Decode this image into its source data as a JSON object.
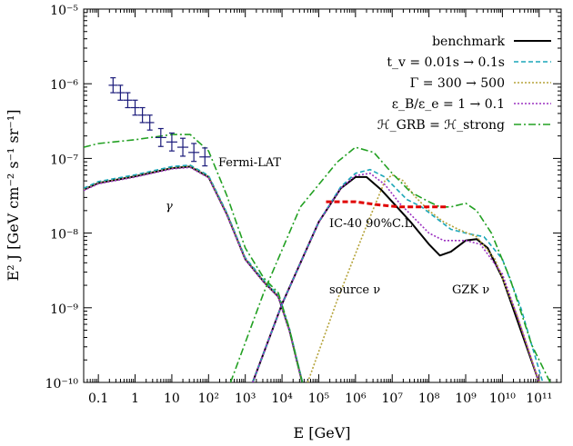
{
  "chart_data": {
    "type": "line",
    "title": "",
    "xlabel": "E [GeV]",
    "ylabel": "E² J [GeV cm⁻² s⁻¹ sr⁻¹]",
    "xscale": "log",
    "yscale": "log",
    "xlim_log10": [
      -1.4,
      11.6
    ],
    "ylim_log10": [
      -10,
      -5
    ],
    "x_tick_labels": [
      "0.1",
      "1",
      "10",
      "10²",
      "10³",
      "10⁴",
      "10⁵",
      "10⁶",
      "10⁷",
      "10⁸",
      "10⁹",
      "10¹⁰",
      "10¹¹"
    ],
    "x_tick_exponents": [
      -1,
      0,
      1,
      2,
      3,
      4,
      5,
      6,
      7,
      8,
      9,
      10,
      11
    ],
    "y_tick_labels": [
      "10⁻¹⁰",
      "10⁻⁹",
      "10⁻⁸",
      "10⁻⁷",
      "10⁻⁶",
      "10⁻⁵"
    ],
    "y_tick_exponents": [
      -10,
      -9,
      -8,
      -7,
      -6,
      -5
    ],
    "legend": [
      {
        "label": "benchmark",
        "color": "#000000",
        "style": "solid"
      },
      {
        "label": "t_v = 0.01s → 0.1s",
        "color": "#1aa6b8",
        "style": "dashed"
      },
      {
        "label": "Γ = 300 → 500",
        "color": "#b5a33a",
        "style": "dotted"
      },
      {
        "label": "ε_B/ε_e = 1 → 0.1",
        "color": "#9b30c0",
        "style": "dotted"
      },
      {
        "label": "ℋ_GRB = ℋ_strong",
        "color": "#22a022",
        "style": "dashdot"
      }
    ],
    "legend_position": "top-right",
    "annotations": [
      "Fermi-LAT",
      "γ",
      "IC-40 90%C.L.",
      "source ν",
      "GZK ν"
    ],
    "series": [
      {
        "name": "benchmark γ",
        "color": "#000000",
        "style": "solid",
        "points": [
          [
            -1.4,
            -7.42
          ],
          [
            -1,
            -7.33
          ],
          [
            0,
            -7.24
          ],
          [
            1,
            -7.13
          ],
          [
            1.5,
            -7.11
          ],
          [
            2,
            -7.25
          ],
          [
            2.5,
            -7.75
          ],
          [
            3,
            -8.35
          ],
          [
            3.5,
            -8.65
          ],
          [
            3.9,
            -8.85
          ],
          [
            4.2,
            -9.3
          ],
          [
            4.4,
            -9.7
          ],
          [
            4.55,
            -10
          ]
        ]
      },
      {
        "name": "t_v γ",
        "color": "#1aa6b8",
        "style": "dashed",
        "points": [
          [
            -1.4,
            -7.4
          ],
          [
            -1,
            -7.31
          ],
          [
            0,
            -7.22
          ],
          [
            1,
            -7.11
          ],
          [
            1.5,
            -7.09
          ],
          [
            2,
            -7.23
          ],
          [
            2.5,
            -7.73
          ],
          [
            3,
            -8.33
          ],
          [
            3.5,
            -8.63
          ],
          [
            3.9,
            -8.83
          ],
          [
            4.2,
            -9.28
          ],
          [
            4.4,
            -9.68
          ],
          [
            4.56,
            -10
          ]
        ]
      },
      {
        "name": "Γ γ",
        "color": "#b5a33a",
        "style": "dotted",
        "points": [
          [
            -1.4,
            -7.42
          ],
          [
            -1,
            -7.33
          ],
          [
            0,
            -7.24
          ],
          [
            1,
            -7.13
          ],
          [
            1.5,
            -7.11
          ],
          [
            2,
            -7.25
          ],
          [
            2.5,
            -7.75
          ],
          [
            3,
            -8.35
          ],
          [
            3.5,
            -8.65
          ],
          [
            3.9,
            -8.85
          ],
          [
            4.2,
            -9.3
          ],
          [
            4.4,
            -9.7
          ],
          [
            4.55,
            -10
          ]
        ]
      },
      {
        "name": "ε γ",
        "color": "#9b30c0",
        "style": "dotted",
        "points": [
          [
            -1.4,
            -7.43
          ],
          [
            -1,
            -7.34
          ],
          [
            0,
            -7.25
          ],
          [
            1,
            -7.14
          ],
          [
            1.5,
            -7.12
          ],
          [
            2,
            -7.26
          ],
          [
            2.5,
            -7.76
          ],
          [
            3,
            -8.36
          ],
          [
            3.5,
            -8.66
          ],
          [
            3.9,
            -8.86
          ],
          [
            4.2,
            -9.31
          ],
          [
            4.4,
            -9.71
          ],
          [
            4.54,
            -10
          ]
        ]
      },
      {
        "name": "ℋ γ",
        "color": "#22a022",
        "style": "dashdot",
        "points": [
          [
            -1.4,
            -6.85
          ],
          [
            -1,
            -6.8
          ],
          [
            0,
            -6.75
          ],
          [
            1,
            -6.68
          ],
          [
            1.5,
            -6.68
          ],
          [
            2,
            -6.9
          ],
          [
            2.5,
            -7.5
          ],
          [
            3,
            -8.2
          ],
          [
            3.5,
            -8.6
          ],
          [
            3.9,
            -8.8
          ],
          [
            4.2,
            -9.28
          ],
          [
            4.4,
            -9.7
          ],
          [
            4.55,
            -10
          ]
        ]
      },
      {
        "name": "benchmark ν",
        "color": "#000000",
        "style": "solid",
        "points": [
          [
            3.2,
            -10
          ],
          [
            4,
            -8.95
          ],
          [
            5,
            -7.85
          ],
          [
            5.6,
            -7.4
          ],
          [
            6,
            -7.25
          ],
          [
            6.3,
            -7.25
          ],
          [
            6.7,
            -7.42
          ],
          [
            7,
            -7.58
          ],
          [
            7.5,
            -7.85
          ],
          [
            8,
            -8.15
          ],
          [
            8.3,
            -8.3
          ],
          [
            8.6,
            -8.25
          ],
          [
            9,
            -8.1
          ],
          [
            9.3,
            -8.08
          ],
          [
            9.6,
            -8.2
          ],
          [
            10,
            -8.6
          ],
          [
            10.5,
            -9.3
          ],
          [
            11,
            -10
          ]
        ]
      },
      {
        "name": "t_v ν",
        "color": "#1aa6b8",
        "style": "dashed",
        "points": [
          [
            3.2,
            -10
          ],
          [
            4,
            -8.95
          ],
          [
            5,
            -7.85
          ],
          [
            5.6,
            -7.38
          ],
          [
            6,
            -7.2
          ],
          [
            6.4,
            -7.15
          ],
          [
            6.8,
            -7.25
          ],
          [
            7,
            -7.35
          ],
          [
            7.4,
            -7.55
          ],
          [
            7.8,
            -7.65
          ],
          [
            8.2,
            -7.8
          ],
          [
            8.6,
            -7.95
          ],
          [
            9,
            -8.0
          ],
          [
            9.5,
            -8.05
          ],
          [
            10,
            -8.35
          ],
          [
            10.5,
            -9.0
          ],
          [
            11.1,
            -10
          ]
        ]
      },
      {
        "name": "Γ ν",
        "color": "#b5a33a",
        "style": "dotted",
        "points": [
          [
            4.7,
            -10
          ],
          [
            5.5,
            -8.9
          ],
          [
            6.3,
            -7.9
          ],
          [
            6.8,
            -7.3
          ],
          [
            7,
            -7.22
          ],
          [
            7.3,
            -7.3
          ],
          [
            7.6,
            -7.5
          ],
          [
            8,
            -7.7
          ],
          [
            8.4,
            -7.85
          ],
          [
            8.8,
            -7.95
          ],
          [
            9.3,
            -8.05
          ],
          [
            9.8,
            -8.35
          ],
          [
            10.4,
            -9.1
          ],
          [
            11,
            -10
          ]
        ]
      },
      {
        "name": "ε ν",
        "color": "#9b30c0",
        "style": "dotted",
        "points": [
          [
            3.2,
            -10
          ],
          [
            4,
            -8.95
          ],
          [
            5,
            -7.85
          ],
          [
            5.6,
            -7.4
          ],
          [
            6,
            -7.23
          ],
          [
            6.4,
            -7.2
          ],
          [
            6.8,
            -7.35
          ],
          [
            7.2,
            -7.6
          ],
          [
            7.6,
            -7.8
          ],
          [
            8,
            -8.0
          ],
          [
            8.4,
            -8.1
          ],
          [
            9,
            -8.1
          ],
          [
            9.4,
            -8.15
          ],
          [
            10,
            -8.55
          ],
          [
            10.5,
            -9.25
          ],
          [
            11,
            -10
          ]
        ]
      },
      {
        "name": "ℋ ν",
        "color": "#22a022",
        "style": "dashdot",
        "points": [
          [
            2.6,
            -10
          ],
          [
            3.5,
            -8.8
          ],
          [
            4.5,
            -7.65
          ],
          [
            5.5,
            -7.05
          ],
          [
            6,
            -6.85
          ],
          [
            6.5,
            -6.92
          ],
          [
            7,
            -7.2
          ],
          [
            7.5,
            -7.45
          ],
          [
            8,
            -7.58
          ],
          [
            8.3,
            -7.65
          ],
          [
            8.6,
            -7.65
          ],
          [
            9,
            -7.6
          ],
          [
            9.3,
            -7.7
          ],
          [
            9.7,
            -8.0
          ],
          [
            10.2,
            -8.6
          ],
          [
            10.8,
            -9.5
          ],
          [
            11.3,
            -10
          ]
        ]
      },
      {
        "name": "IC-40 90%C.L.",
        "color": "#e00000",
        "style": "heavy-dashed",
        "points": [
          [
            5.2,
            -7.58
          ],
          [
            6.0,
            -7.58
          ],
          [
            6.6,
            -7.62
          ],
          [
            7.2,
            -7.65
          ],
          [
            8.0,
            -7.65
          ],
          [
            8.5,
            -7.65
          ]
        ]
      }
    ],
    "fermi_lat_points": [
      {
        "x": -0.6,
        "y": -6.02,
        "xerr": 0.12,
        "yerr": 0.1
      },
      {
        "x": -0.4,
        "y": -6.12,
        "xerr": 0.12,
        "yerr": 0.1
      },
      {
        "x": -0.2,
        "y": -6.22,
        "xerr": 0.12,
        "yerr": 0.1
      },
      {
        "x": 0.0,
        "y": -6.32,
        "xerr": 0.12,
        "yerr": 0.1
      },
      {
        "x": 0.2,
        "y": -6.42,
        "xerr": 0.12,
        "yerr": 0.1
      },
      {
        "x": 0.4,
        "y": -6.52,
        "xerr": 0.12,
        "yerr": 0.1
      },
      {
        "x": 0.7,
        "y": -6.72,
        "xerr": 0.15,
        "yerr": 0.12
      },
      {
        "x": 1.0,
        "y": -6.78,
        "xerr": 0.15,
        "yerr": 0.12
      },
      {
        "x": 1.3,
        "y": -6.85,
        "xerr": 0.15,
        "yerr": 0.12
      },
      {
        "x": 1.6,
        "y": -6.92,
        "xerr": 0.15,
        "yerr": 0.12
      },
      {
        "x": 1.9,
        "y": -6.98,
        "xerr": 0.15,
        "yerr": 0.12
      }
    ]
  }
}
